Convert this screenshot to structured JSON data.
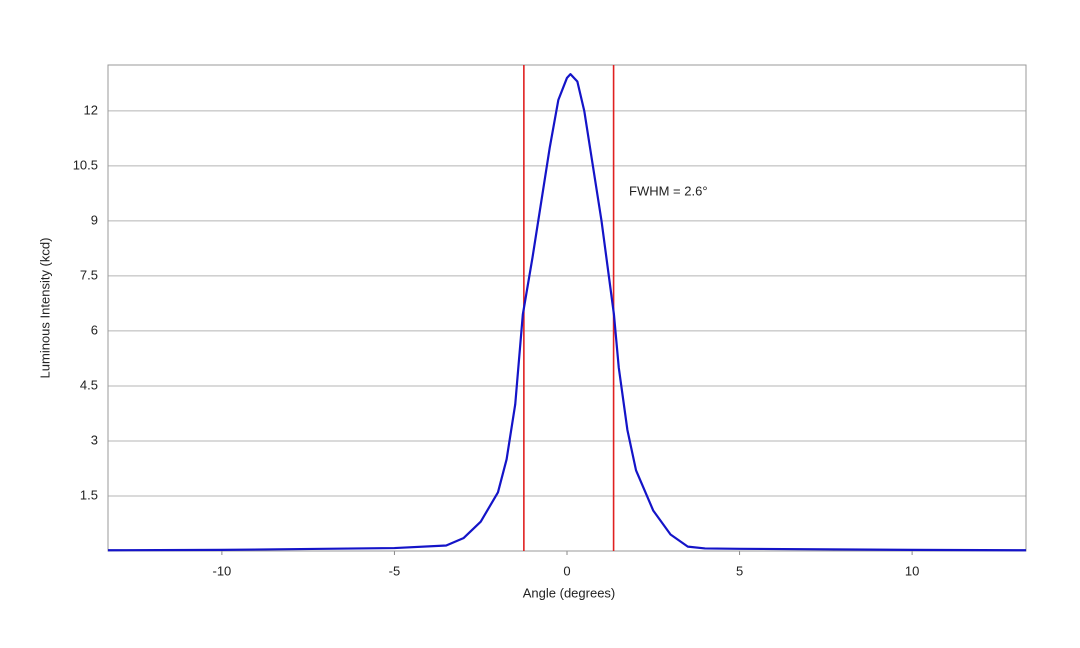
{
  "chart_data": {
    "type": "line",
    "x_label": "Angle (degrees)",
    "y_label": "Luminous Intensity (kcd)",
    "annotation": "FWHM = 2.6°",
    "xlim": [
      -13.3,
      13.3
    ],
    "ylim": [
      0,
      13.25
    ],
    "xticks": [
      -10,
      -5,
      0,
      5,
      10
    ],
    "yticks": [
      1.5,
      3,
      4.5,
      6,
      7.5,
      9,
      10.5,
      12
    ],
    "grid": true,
    "vlines": [
      -1.25,
      1.35
    ],
    "vline_color": "#e02020",
    "series": [
      {
        "color": "#1414c8",
        "x": [
          -13.3,
          -10,
          -5,
          -3.5,
          -3,
          -2.5,
          -2,
          -1.75,
          -1.5,
          -1.28,
          -1,
          -0.5,
          -0.25,
          0,
          0.1,
          0.3,
          0.5,
          1,
          1.36,
          1.5,
          1.75,
          2,
          2.5,
          3,
          3.5,
          4,
          5,
          10,
          13.3
        ],
        "values": [
          0.02,
          0.03,
          0.08,
          0.15,
          0.35,
          0.8,
          1.6,
          2.5,
          4.0,
          6.45,
          8.0,
          11.0,
          12.3,
          12.9,
          13.0,
          12.8,
          12.0,
          9.0,
          6.45,
          5.0,
          3.3,
          2.2,
          1.1,
          0.45,
          0.12,
          0.07,
          0.06,
          0.03,
          0.02
        ]
      }
    ]
  }
}
